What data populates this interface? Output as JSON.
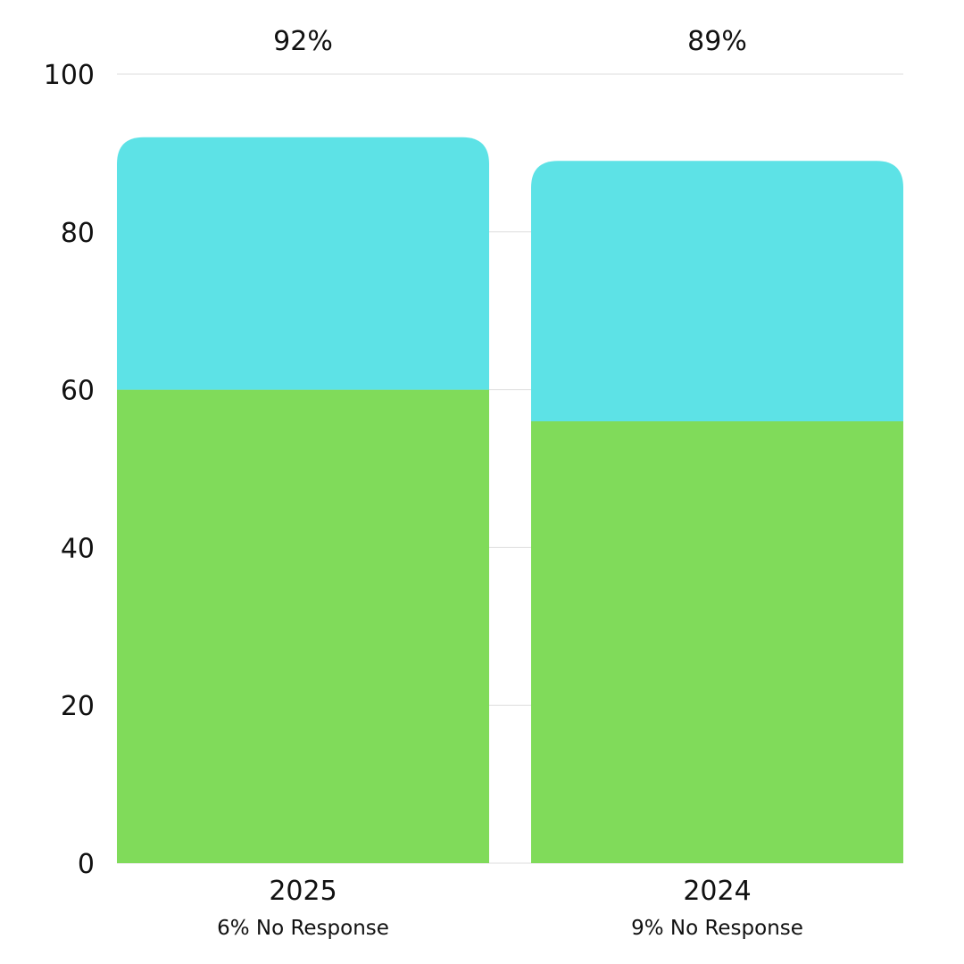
{
  "chart_data": {
    "type": "bar",
    "stacked": true,
    "categories": [
      "2025",
      "2024"
    ],
    "sublabels": [
      "6% No Response",
      "9% No Response"
    ],
    "totals_labels": [
      "92%",
      "89%"
    ],
    "series": [
      {
        "values": [
          60,
          56
        ],
        "color": "#80DB5A"
      },
      {
        "values": [
          32,
          33
        ],
        "color": "#5DE2E6"
      }
    ],
    "ylim": [
      0,
      100
    ],
    "yticks": [
      0,
      20,
      40,
      60,
      80,
      100
    ],
    "grid": true,
    "legend": "none"
  },
  "colors": {
    "grid": "#dddddd",
    "text": "#111111"
  }
}
